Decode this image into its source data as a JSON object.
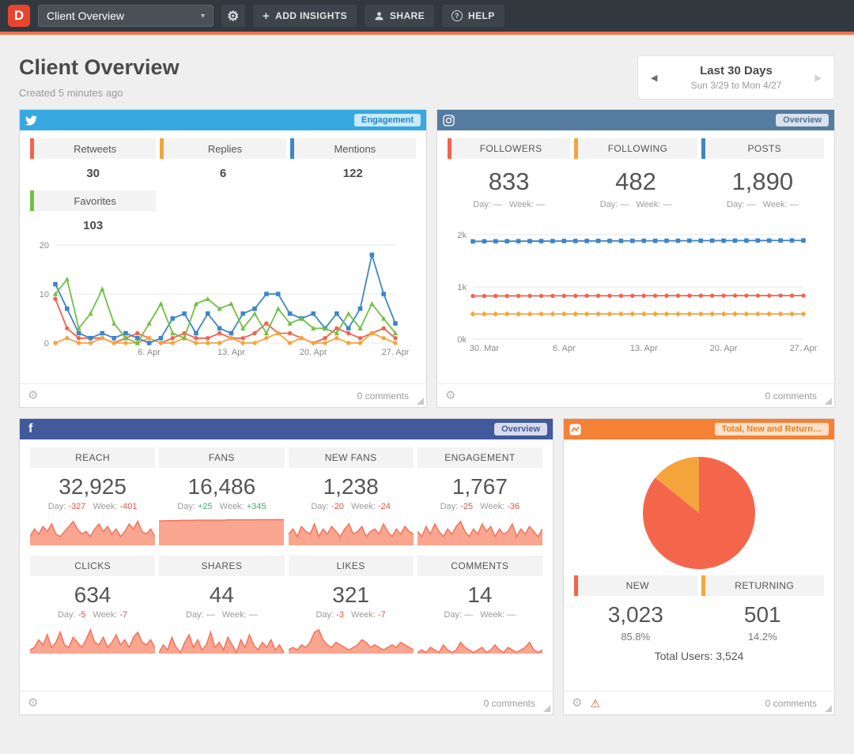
{
  "topbar": {
    "logo": "D",
    "dashboard_selector": "Client Overview",
    "add_insights": "ADD INSIGHTS",
    "share": "SHARE",
    "help": "HELP"
  },
  "header": {
    "title": "Client Overview",
    "subtitle": "Created 5 minutes ago",
    "date_nav": {
      "label": "Last 30 Days",
      "range": "Sun 3/29 to Mon 4/27"
    }
  },
  "labels": {
    "day": "Day:",
    "week": "Week:"
  },
  "widgets": {
    "twitter": {
      "badge": "Engagement",
      "comments": "0 comments",
      "stats": [
        {
          "label": "Retweets",
          "value": "30",
          "accent": "#f4624d"
        },
        {
          "label": "Replies",
          "value": "6",
          "accent": "#f5a43c"
        },
        {
          "label": "Mentions",
          "value": "122",
          "accent": "#3d86c6"
        },
        {
          "label": "Favorites",
          "value": "103",
          "accent": "#71bf44"
        }
      ]
    },
    "instagram": {
      "badge": "Overview",
      "comments": "0 comments",
      "stats": [
        {
          "label": "FOLLOWERS",
          "value": "833",
          "day": "—",
          "week": "—",
          "accent": "#f4624d"
        },
        {
          "label": "FOLLOWING",
          "value": "482",
          "day": "—",
          "week": "—",
          "accent": "#f5a43c"
        },
        {
          "label": "POSTS",
          "value": "1,890",
          "day": "—",
          "week": "—",
          "accent": "#3d86c6"
        }
      ]
    },
    "facebook": {
      "badge": "Overview",
      "comments": "0 comments",
      "stats": [
        {
          "label": "REACH",
          "value": "32,925",
          "day": "-327",
          "week": "-401"
        },
        {
          "label": "FANS",
          "value": "16,486",
          "day": "+25",
          "week": "+345"
        },
        {
          "label": "NEW FANS",
          "value": "1,238",
          "day": "-20",
          "week": "-24"
        },
        {
          "label": "ENGAGEMENT",
          "value": "1,767",
          "day": "-25",
          "week": "-36"
        },
        {
          "label": "CLICKS",
          "value": "634",
          "day": "-5",
          "week": "-7"
        },
        {
          "label": "SHARES",
          "value": "44",
          "day": "—",
          "week": "—"
        },
        {
          "label": "LIKES",
          "value": "321",
          "day": "-3",
          "week": "-7"
        },
        {
          "label": "COMMENTS",
          "value": "14",
          "day": "—",
          "week": "—"
        }
      ]
    },
    "analytics": {
      "badge": "Total, New and Return…",
      "comments": "0 comments",
      "total": "Total Users: 3,524",
      "stats": [
        {
          "label": "NEW",
          "value": "3,023",
          "pct": "85.8%",
          "accent": "#f4624d"
        },
        {
          "label": "RETURNING",
          "value": "501",
          "pct": "14.2%",
          "accent": "#f5a43c"
        }
      ]
    }
  },
  "chart_data": [
    {
      "id": "twitter_engagement",
      "type": "line",
      "title": "Twitter Engagement",
      "n": 30,
      "ymin": 0,
      "ymax": 20,
      "yticks": [
        {
          "v": 0,
          "label": "0"
        },
        {
          "v": 10,
          "label": "10"
        },
        {
          "v": 20,
          "label": "20"
        }
      ],
      "xticks": [
        {
          "i": 8,
          "label": "6. Apr"
        },
        {
          "i": 15,
          "label": "13. Apr"
        },
        {
          "i": 22,
          "label": "20. Apr"
        },
        {
          "i": 29,
          "label": "27. Apr"
        }
      ],
      "series": [
        {
          "name": "Retweets",
          "color": "#f4624d",
          "marker": "circle",
          "values": [
            9,
            3,
            1,
            1,
            1,
            0,
            1,
            2,
            1,
            0,
            1,
            2,
            1,
            1,
            2,
            1,
            1,
            2,
            4,
            2,
            2,
            1,
            0,
            1,
            3,
            2,
            1,
            2,
            3,
            1
          ]
        },
        {
          "name": "Replies",
          "color": "#f5a43c",
          "marker": "circle",
          "values": [
            0,
            1,
            0,
            0,
            1,
            0,
            0,
            0,
            1,
            0,
            0,
            1,
            0,
            0,
            0,
            1,
            0,
            0,
            1,
            2,
            0,
            1,
            0,
            0,
            1,
            0,
            0,
            2,
            1,
            0
          ]
        },
        {
          "name": "Mentions",
          "color": "#3d86c6",
          "marker": "square",
          "values": [
            12,
            7,
            2,
            1,
            2,
            1,
            2,
            1,
            0,
            1,
            5,
            6,
            2,
            6,
            3,
            2,
            6,
            7,
            10,
            10,
            6,
            5,
            6,
            3,
            6,
            3,
            7,
            18,
            10,
            4
          ]
        },
        {
          "name": "Favorites",
          "color": "#71bf44",
          "marker": "triangle",
          "values": [
            10,
            13,
            3,
            6,
            11,
            4,
            1,
            0,
            4,
            8,
            2,
            1,
            8,
            9,
            7,
            8,
            3,
            6,
            2,
            7,
            4,
            5,
            3,
            3,
            2,
            6,
            3,
            8,
            5,
            2
          ]
        }
      ]
    },
    {
      "id": "instagram_overview",
      "type": "line",
      "title": "Instagram Overview",
      "n": 30,
      "ymin": 0,
      "ymax": 2000,
      "yticks": [
        {
          "v": 0,
          "label": "0k"
        },
        {
          "v": 1000,
          "label": "1k"
        },
        {
          "v": 2000,
          "label": "2k"
        }
      ],
      "xticks": [
        {
          "i": 1,
          "label": "30. Mar"
        },
        {
          "i": 8,
          "label": "6. Apr"
        },
        {
          "i": 15,
          "label": "13. Apr"
        },
        {
          "i": 22,
          "label": "20. Apr"
        },
        {
          "i": 29,
          "label": "27. Apr"
        }
      ],
      "series": [
        {
          "name": "Posts",
          "color": "#3d86c6",
          "marker": "square",
          "values": [
            1872,
            1874,
            1875,
            1876,
            1877,
            1878,
            1878,
            1879,
            1880,
            1880,
            1881,
            1882,
            1882,
            1883,
            1883,
            1884,
            1884,
            1885,
            1885,
            1886,
            1886,
            1887,
            1887,
            1888,
            1888,
            1889,
            1889,
            1890,
            1890,
            1890
          ]
        },
        {
          "name": "Followers",
          "color": "#f4624d",
          "marker": "circle",
          "values": [
            826,
            826,
            827,
            827,
            828,
            828,
            828,
            829,
            829,
            829,
            830,
            830,
            830,
            830,
            831,
            831,
            831,
            831,
            832,
            832,
            832,
            832,
            832,
            833,
            833,
            833,
            833,
            833,
            833,
            833
          ]
        },
        {
          "name": "Following",
          "color": "#f5a43c",
          "marker": "diamond",
          "values": [
            480,
            480,
            480,
            481,
            481,
            481,
            481,
            481,
            481,
            482,
            482,
            482,
            482,
            482,
            482,
            482,
            482,
            482,
            482,
            482,
            482,
            482,
            482,
            482,
            482,
            482,
            482,
            482,
            482,
            482
          ]
        }
      ]
    },
    {
      "id": "fb_reach",
      "type": "area",
      "max": 10,
      "color": "#f4735c",
      "fill": "#f9a58f",
      "values": [
        3,
        6,
        4,
        7,
        5,
        8,
        4,
        3,
        5,
        7,
        9,
        6,
        4,
        5,
        3,
        6,
        8,
        5,
        7,
        4,
        6,
        3,
        5,
        8,
        6,
        9,
        5,
        4,
        6,
        3
      ]
    },
    {
      "id": "fb_fans",
      "type": "area",
      "max": 10,
      "color": "#f4735c",
      "fill": "#f9a58f",
      "values": [
        9.2,
        9.2,
        9.3,
        9.3,
        9.3,
        9.4,
        9.4,
        9.4,
        9.4,
        9.5,
        9.5,
        9.5,
        9.5,
        9.5,
        9.5,
        9.5,
        9.6,
        9.6,
        9.6,
        9.6,
        9.6,
        9.6,
        9.6,
        9.7,
        9.7,
        9.7,
        9.7,
        9.7,
        9.7,
        9.7
      ]
    },
    {
      "id": "fb_new_fans",
      "type": "area",
      "max": 10,
      "color": "#f4735c",
      "fill": "#f9a58f",
      "values": [
        4,
        6,
        3,
        7,
        5,
        4,
        8,
        3,
        6,
        4,
        7,
        5,
        3,
        6,
        8,
        4,
        5,
        7,
        3,
        5,
        6,
        4,
        8,
        5,
        3,
        6,
        4,
        7,
        5,
        4
      ]
    },
    {
      "id": "fb_engagement",
      "type": "area",
      "max": 10,
      "color": "#f4735c",
      "fill": "#f9a58f",
      "values": [
        5,
        3,
        7,
        4,
        8,
        5,
        3,
        6,
        4,
        7,
        9,
        5,
        3,
        6,
        4,
        8,
        5,
        7,
        3,
        6,
        4,
        5,
        8,
        3,
        6,
        4,
        7,
        5,
        3,
        6
      ]
    },
    {
      "id": "fb_clicks",
      "type": "area",
      "max": 10,
      "color": "#f4735c",
      "fill": "#f9a58f",
      "values": [
        1,
        2,
        5,
        3,
        7,
        2,
        4,
        8,
        3,
        2,
        6,
        4,
        2,
        5,
        9,
        4,
        3,
        6,
        2,
        4,
        7,
        3,
        5,
        2,
        6,
        8,
        4,
        3,
        5,
        2
      ]
    },
    {
      "id": "fb_shares",
      "type": "area",
      "max": 10,
      "color": "#f4735c",
      "fill": "#f9a58f",
      "values": [
        0,
        3,
        1,
        6,
        2,
        0,
        4,
        7,
        2,
        5,
        1,
        3,
        8,
        2,
        4,
        1,
        6,
        3,
        0,
        5,
        2,
        7,
        3,
        1,
        4,
        2,
        5,
        1,
        3,
        0
      ]
    },
    {
      "id": "fb_likes",
      "type": "area",
      "max": 10,
      "color": "#f4735c",
      "fill": "#f9a58f",
      "values": [
        1,
        2,
        1,
        3,
        2,
        4,
        8,
        9,
        5,
        3,
        2,
        4,
        3,
        2,
        1,
        2,
        3,
        5,
        4,
        2,
        3,
        2,
        1,
        2,
        3,
        2,
        4,
        3,
        2,
        1
      ]
    },
    {
      "id": "fb_comments",
      "type": "area",
      "max": 10,
      "color": "#f4735c",
      "fill": "#f9a58f",
      "values": [
        0,
        1,
        0,
        2,
        1,
        0,
        3,
        1,
        0,
        1,
        4,
        2,
        1,
        0,
        1,
        2,
        0,
        1,
        3,
        1,
        0,
        2,
        1,
        0,
        1,
        2,
        4,
        1,
        0,
        1
      ]
    },
    {
      "id": "ga_users_pie",
      "type": "pie",
      "slices": [
        {
          "label": "New",
          "value": 85.8,
          "color": "#f4664c"
        },
        {
          "label": "Returning",
          "value": 14.2,
          "color": "#f5a43c"
        }
      ]
    }
  ]
}
